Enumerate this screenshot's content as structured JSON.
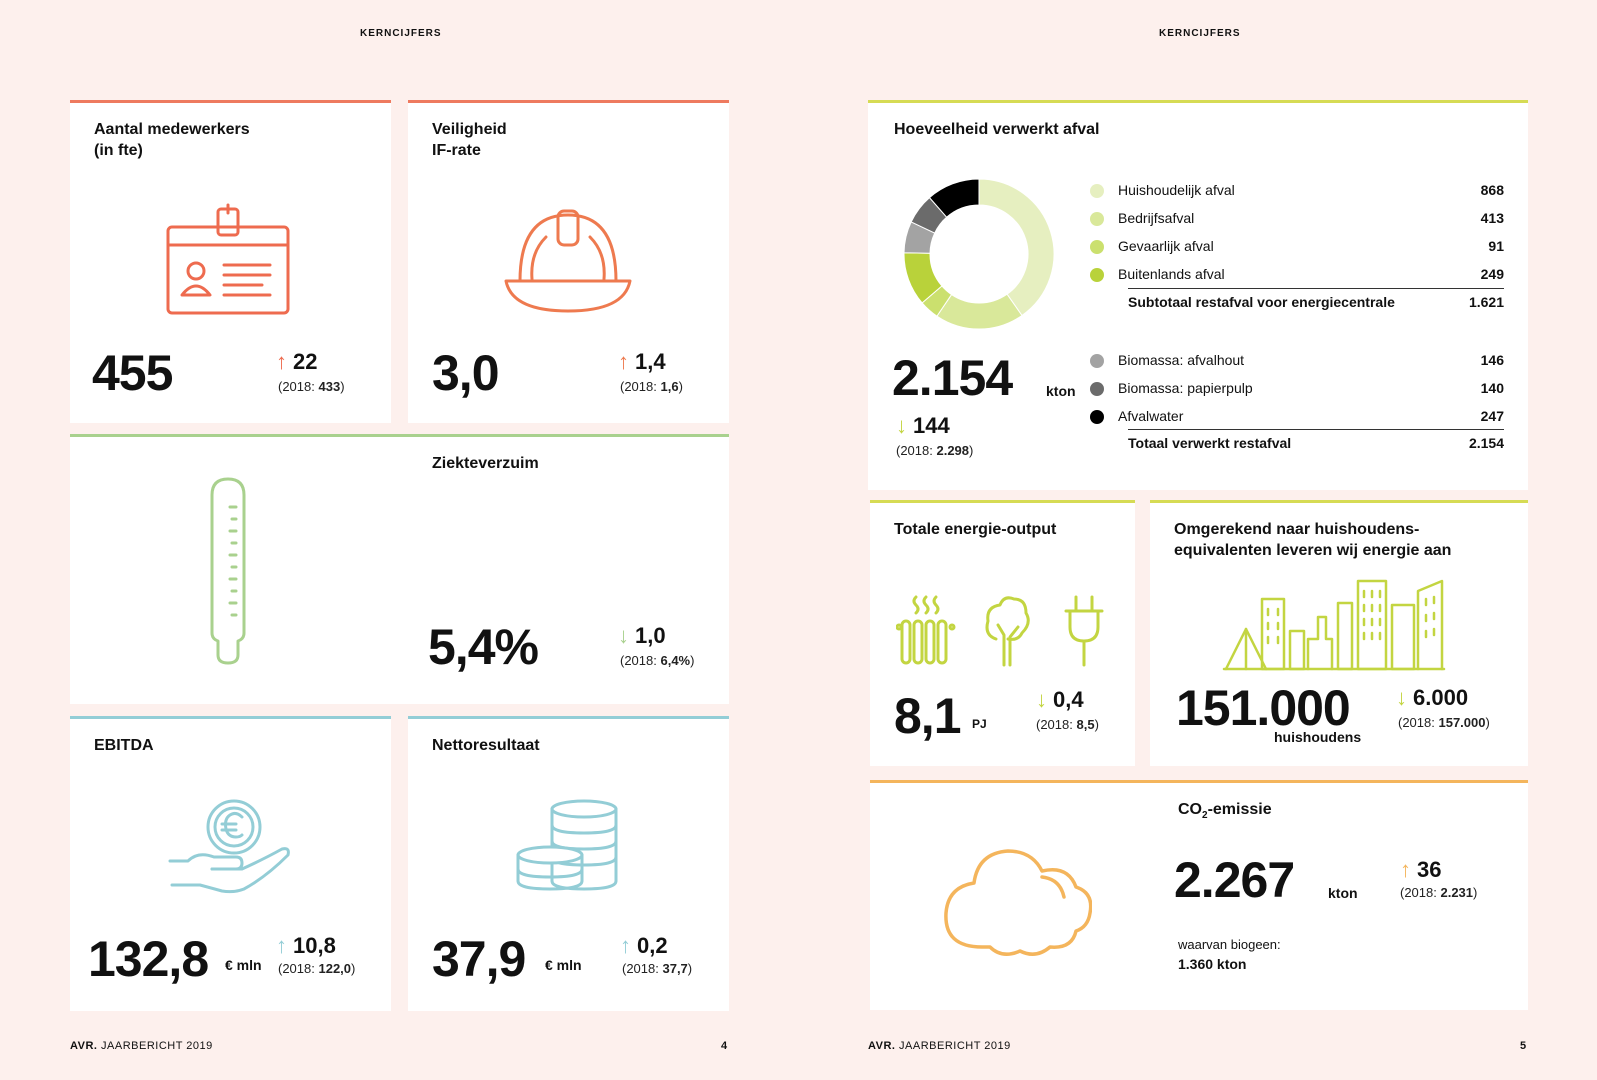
{
  "page_left": {
    "header": "KERNCIJFERS",
    "footer_brand": "AVR.",
    "footer_text": " JAARBERICHT 2019",
    "page_number": "4"
  },
  "page_right": {
    "header": "KERNCIJFERS",
    "footer_brand": "AVR.",
    "footer_text": " JAARBERICHT 2019",
    "page_number": "5"
  },
  "employees": {
    "title_line1": "Aantal medewerkers",
    "title_line2": "(in fte)",
    "value": "455",
    "delta_arrow": "↑",
    "delta": "22",
    "prev_label": "(2018: ",
    "prev_value": "433",
    "prev_close": ")"
  },
  "safety": {
    "title_line1": "Veiligheid",
    "title_line2": "IF-rate",
    "value": "3,0",
    "delta_arrow": "↑",
    "delta": "1,4",
    "prev_label": "(2018: ",
    "prev_value": "1,6",
    "prev_close": ")"
  },
  "absence": {
    "title": "Ziekteverzuim",
    "value": "5,4%",
    "delta_arrow": "↓",
    "delta": "1,0",
    "prev_label": "(2018: ",
    "prev_value": "6,4%",
    "prev_close": ")"
  },
  "ebitda": {
    "title": "EBITDA",
    "value": "132,8",
    "unit": "€ mln",
    "delta_arrow": "↑",
    "delta": "10,8",
    "prev_label": "(2018: ",
    "prev_value": "122,0",
    "prev_close": ")"
  },
  "net_result": {
    "title": "Nettoresultaat",
    "value": "37,9",
    "unit": "€ mln",
    "delta_arrow": "↑",
    "delta": "0,2",
    "prev_label": "(2018: ",
    "prev_value": "37,7",
    "prev_close": ")"
  },
  "waste": {
    "title": "Hoeveelheid verwerkt afval",
    "value": "2.154",
    "unit": "kton",
    "delta_arrow": "↓",
    "delta": "144",
    "prev_label": "(2018: ",
    "prev_value": "2.298",
    "prev_close": ")",
    "legend_group1": [
      {
        "label": "Huishoudelijk afval",
        "value": "868",
        "color": "#e6efc0"
      },
      {
        "label": "Bedrijfsafval",
        "value": "413",
        "color": "#d9e89a"
      },
      {
        "label": "Gevaarlijk afval",
        "value": "91",
        "color": "#cbe06e"
      },
      {
        "label": "Buitenlands afval",
        "value": "249",
        "color": "#b9d23a"
      }
    ],
    "subtotal_label": "Subtotaal restafval voor energiecentrale",
    "subtotal_value": "1.621",
    "legend_group2": [
      {
        "label": "Biomassa: afvalhout",
        "value": "146",
        "color": "#a3a3a3"
      },
      {
        "label": "Biomassa: papierpulp",
        "value": "140",
        "color": "#6b6b6b"
      },
      {
        "label": "Afvalwater",
        "value": "247",
        "color": "#000000"
      }
    ],
    "total_label": "Totaal verwerkt restafval",
    "total_value": "2.154"
  },
  "chart_data": {
    "type": "pie",
    "categories": [
      "Huishoudelijk afval",
      "Bedrijfsafval",
      "Gevaarlijk afval",
      "Buitenlands afval",
      "Biomassa: afvalhout",
      "Biomassa: papierpulp",
      "Afvalwater"
    ],
    "values": [
      868,
      413,
      91,
      249,
      146,
      140,
      247
    ],
    "colors": [
      "#e6efc0",
      "#d9e89a",
      "#cbe06e",
      "#b9d23a",
      "#a3a3a3",
      "#6b6b6b",
      "#000000"
    ],
    "donut": true
  },
  "energy": {
    "title": "Totale energie-output",
    "value": "8,1",
    "unit": "PJ",
    "delta_arrow": "↓",
    "delta": "0,4",
    "prev_label": "(2018: ",
    "prev_value": "8,5",
    "prev_close": ")"
  },
  "households": {
    "title_line1": "Omgerekend naar huishoudens-",
    "title_line2": "equivalenten leveren wij energie aan",
    "value": "151.000",
    "unit": "huishoudens",
    "delta_arrow": "↓",
    "delta": "6.000",
    "prev_label": "(2018: ",
    "prev_value": "157.000",
    "prev_close": ")"
  },
  "co2": {
    "title_main": "CO",
    "title_sub": "2",
    "title_rest": "-emissie",
    "value": "2.267",
    "unit": "kton",
    "delta_arrow": "↑",
    "delta": "36",
    "prev_label": "(2018: ",
    "prev_value": "2.231",
    "prev_close": ")",
    "note_line1": "waarvan biogeen:",
    "note_line2": "1.360 kton"
  },
  "colors": {
    "red": "#ee7a5f",
    "green": "#a9d18e",
    "blue": "#93cdd6",
    "lime": "#c3d541",
    "orange": "#f4b55c"
  },
  "icons": [
    "id-badge-icon",
    "hardhat-icon",
    "thermometer-icon",
    "euro-hand-icon",
    "coins-icon",
    "donut-chart",
    "radiator-icon",
    "tree-icon",
    "plug-icon",
    "city-icon",
    "cloud-icon"
  ]
}
